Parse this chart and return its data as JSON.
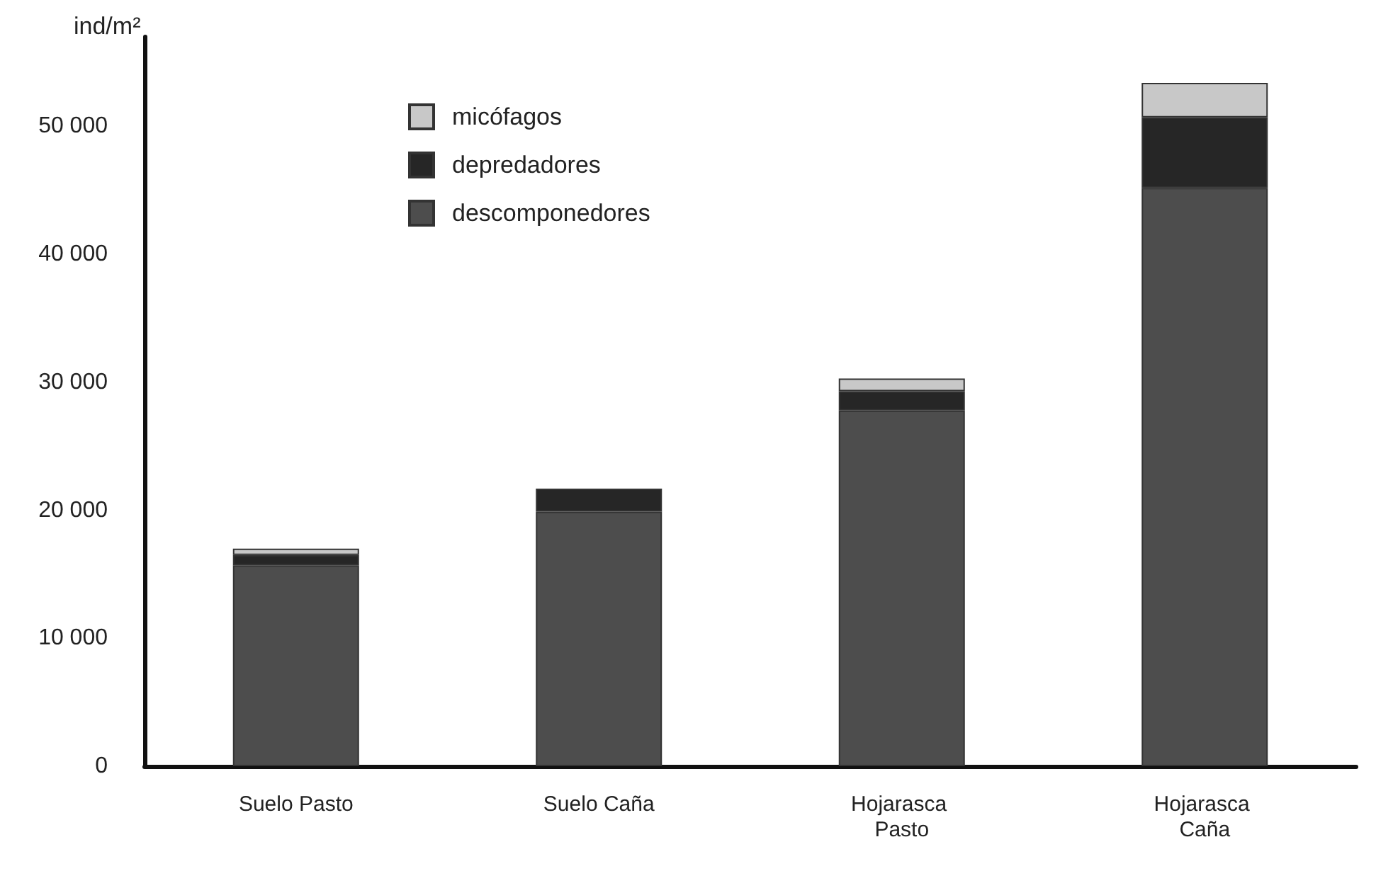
{
  "chart_data": {
    "type": "bar",
    "stacked": true,
    "ylabel": "ind/m²",
    "categories": [
      "Suelo Pasto",
      "Suelo Caña",
      "Hojarasca Pasto",
      "Hojarasca Caña"
    ],
    "series": [
      {
        "name": "descomponedores",
        "color": "#4d4d4d",
        "values": [
          15700,
          19900,
          27800,
          45200
        ]
      },
      {
        "name": "depredadores",
        "color": "#262626",
        "values": [
          800,
          1800,
          1500,
          5500
        ]
      },
      {
        "name": "micófagos",
        "color": "#c8c8c8",
        "values": [
          500,
          null,
          1000,
          2700
        ]
      }
    ],
    "ylim": [
      0,
      57000
    ],
    "yticks": [
      0,
      {
        "value": 10000,
        "label": "10 000"
      },
      {
        "value": 20000,
        "label": "20 000"
      },
      {
        "value": 30000,
        "label": "30 000"
      },
      {
        "value": 40000,
        "label": "40 000"
      },
      {
        "value": 50000,
        "label": "50 000"
      }
    ],
    "grid": false,
    "legend": "top left"
  }
}
